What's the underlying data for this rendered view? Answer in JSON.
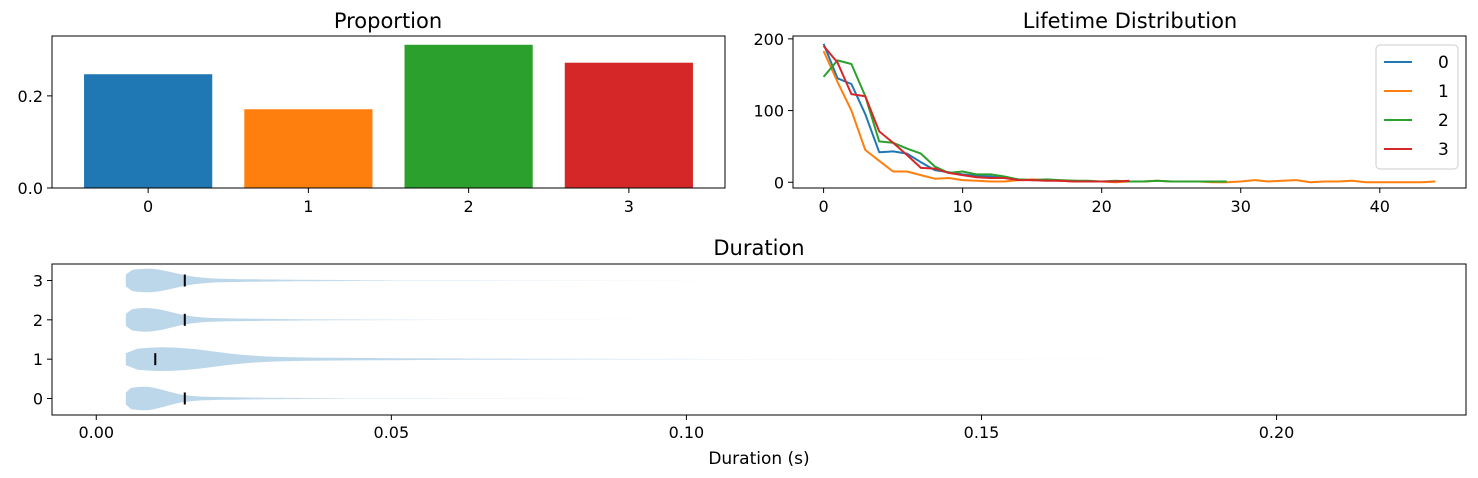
{
  "colors": {
    "c0": "#1f77b4",
    "c1": "#ff7f0e",
    "c2": "#2ca02c",
    "c3": "#d62728",
    "violin": "#bcd6ea"
  },
  "chart_data": [
    {
      "type": "bar",
      "title": "Proportion",
      "categories": [
        "0",
        "1",
        "2",
        "3"
      ],
      "values": [
        0.247,
        0.171,
        0.311,
        0.272
      ],
      "ylim": [
        0,
        0.33
      ],
      "yticks": [
        0.0,
        0.2
      ],
      "ytick_labels": [
        "0.0",
        "0.2"
      ],
      "grid": false
    },
    {
      "type": "line",
      "title": "Lifetime Distribution",
      "xlim": [
        -2.2,
        46.2
      ],
      "ylim": [
        -8,
        204
      ],
      "xticks": [
        0,
        10,
        20,
        30,
        40
      ],
      "xtick_labels": [
        "0",
        "10",
        "20",
        "30",
        "40"
      ],
      "yticks": [
        0,
        100,
        200
      ],
      "ytick_labels": [
        "0",
        "100",
        "200"
      ],
      "legend": "top-right",
      "grid": false,
      "series": [
        {
          "name": "0",
          "x": [
            0,
            1,
            2,
            3,
            4,
            5,
            6,
            7,
            8,
            9,
            10,
            11,
            12,
            13,
            14,
            15,
            16,
            17,
            18,
            19,
            20,
            21,
            22
          ],
          "values": [
            193,
            145,
            137,
            95,
            42,
            43,
            40,
            28,
            17,
            14,
            11,
            9,
            8,
            6,
            4,
            3,
            3,
            2,
            2,
            1,
            1,
            1,
            1
          ]
        },
        {
          "name": "1",
          "x": [
            0,
            1,
            2,
            3,
            4,
            5,
            6,
            7,
            8,
            9,
            10,
            11,
            12,
            13,
            14,
            15,
            16,
            17,
            18,
            19,
            20,
            21,
            22,
            23,
            24,
            25,
            26,
            27,
            28,
            29,
            30,
            31,
            32,
            33,
            34,
            35,
            36,
            37,
            38,
            39,
            40,
            41,
            42,
            43,
            44
          ],
          "values": [
            183,
            140,
            100,
            45,
            30,
            15,
            15,
            10,
            5,
            6,
            3,
            2,
            1,
            1,
            3,
            4,
            3,
            2,
            1,
            1,
            1,
            0,
            1,
            1,
            2,
            1,
            1,
            1,
            0,
            0,
            1,
            3,
            1,
            2,
            3,
            0,
            1,
            1,
            2,
            0,
            0,
            0,
            0,
            0,
            1
          ]
        },
        {
          "name": "2",
          "x": [
            0,
            1,
            2,
            3,
            4,
            5,
            6,
            7,
            8,
            9,
            10,
            11,
            12,
            13,
            14,
            15,
            16,
            17,
            18,
            19,
            20,
            21,
            22,
            23,
            24,
            25,
            26,
            27,
            28,
            29
          ],
          "values": [
            147,
            170,
            165,
            120,
            57,
            55,
            47,
            40,
            22,
            13,
            15,
            11,
            11,
            8,
            4,
            3,
            4,
            3,
            2,
            2,
            1,
            2,
            1,
            1,
            2,
            1,
            1,
            1,
            1,
            1
          ]
        },
        {
          "name": "3",
          "x": [
            0,
            1,
            2,
            3,
            4,
            5,
            6,
            7,
            8,
            9,
            10,
            11,
            12,
            13,
            14,
            15,
            16,
            17,
            18,
            19,
            20,
            21,
            22
          ],
          "values": [
            190,
            167,
            123,
            120,
            71,
            55,
            38,
            20,
            19,
            13,
            10,
            7,
            6,
            6,
            3,
            3,
            2,
            2,
            1,
            1,
            1,
            1,
            2
          ]
        }
      ]
    },
    {
      "type": "violin",
      "title": "Duration",
      "xlabel": "Duration (s)",
      "xlim": [
        -0.0075,
        0.2321
      ],
      "xticks": [
        0.0,
        0.05,
        0.1,
        0.15,
        0.2
      ],
      "xtick_labels": [
        "0.00",
        "0.05",
        "0.10",
        "0.15",
        "0.20"
      ],
      "categories": [
        "0",
        "1",
        "2",
        "3"
      ],
      "series": [
        {
          "name": "0",
          "min": 0.005,
          "max": 0.087,
          "median": 0.015
        },
        {
          "name": "1",
          "min": 0.005,
          "max": 0.184,
          "median": 0.01
        },
        {
          "name": "2",
          "min": 0.005,
          "max": 0.098,
          "median": 0.015
        },
        {
          "name": "3",
          "min": 0.005,
          "max": 0.104,
          "median": 0.015
        }
      ]
    }
  ]
}
